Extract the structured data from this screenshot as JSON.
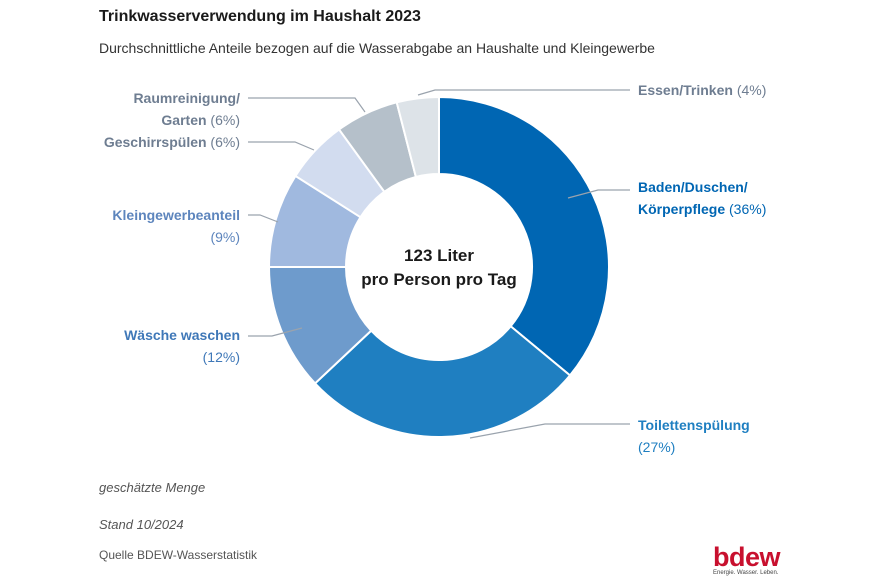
{
  "title": "Trinkwasserverwendung im Haushalt 2023",
  "subtitle": "Durchschnittliche Anteile bezogen auf die Wasserabgabe an Haushalte und Kleingewerbe",
  "center_label": [
    "123 Liter",
    "pro Person pro Tag"
  ],
  "notes": {
    "estimated": "geschätzte Menge",
    "stand": "Stand 10/2024",
    "source": "Quelle BDEW-Wasserstatistik"
  },
  "logo": {
    "word": "bdew",
    "tagline": "Energie. Wasser. Leben.",
    "color": "#c8102e"
  },
  "chart_data": {
    "type": "pie",
    "donut": true,
    "title": "Trinkwasserverwendung im Haushalt 2023",
    "subtitle": "Durchschnittliche Anteile bezogen auf die Wasserabgabe an Haushalte und Kleingewerbe",
    "unit": "%",
    "slices": [
      {
        "label": [
          "Baden/Duschen/",
          "Körperpflege"
        ],
        "value": 36,
        "value_text": "(36%)",
        "color": "#0066b3",
        "label_color": "#0066b3"
      },
      {
        "label": [
          "Toilettenspülung"
        ],
        "value": 27,
        "value_text": "(27%)",
        "color": "#1f7fc1",
        "label_color": "#1f7fc1"
      },
      {
        "label": [
          "Wäsche waschen"
        ],
        "value": 12,
        "value_text": "(12%)",
        "color": "#6e9bcc",
        "label_color": "#3f78b8"
      },
      {
        "label": [
          "Kleingewerbeanteil"
        ],
        "value": 9,
        "value_text": "(9%)",
        "color": "#a0b9df",
        "label_color": "#5d85bd"
      },
      {
        "label": [
          "Geschirrspülen"
        ],
        "value": 6,
        "value_text": "(6%)",
        "color": "#d2dcef",
        "label_color": "#6e7d91"
      },
      {
        "label": [
          "Raumreinigung/",
          "Garten"
        ],
        "value": 6,
        "value_text": "(6%)",
        "color": "#b5c0ca",
        "label_color": "#6e7d91"
      },
      {
        "label": [
          "Essen/Trinken"
        ],
        "value": 4,
        "value_text": "(4%)",
        "color": "#dde3e8",
        "label_color": "#6e7d91"
      }
    ]
  }
}
